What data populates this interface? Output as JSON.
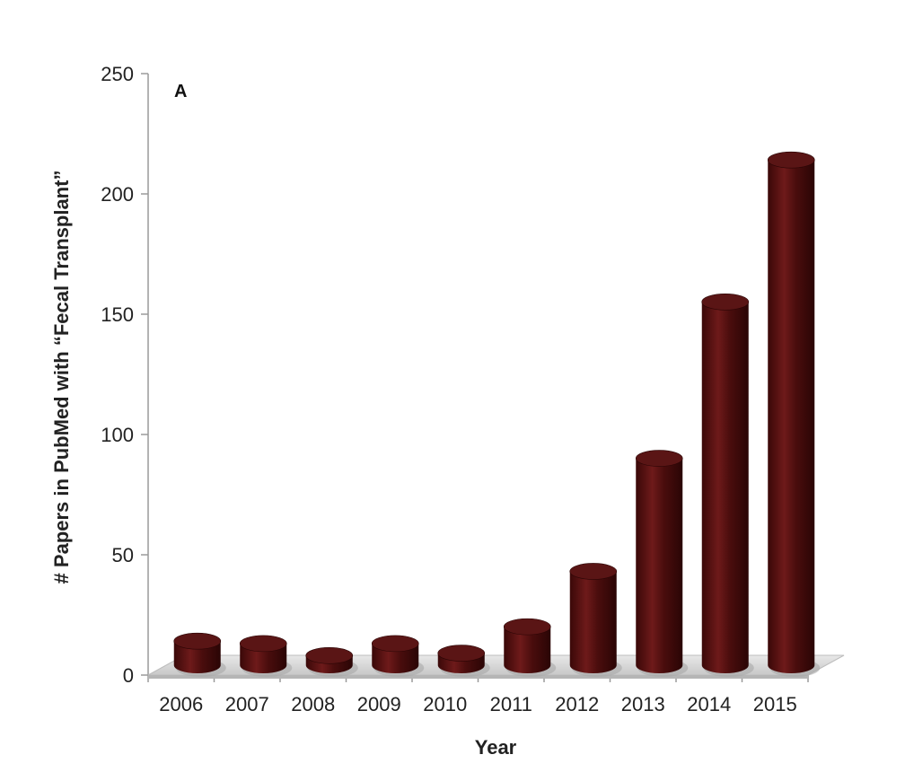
{
  "chart_data": {
    "type": "bar",
    "style": "3d-cylinder",
    "panel_label": "A",
    "title": "",
    "xlabel": "Year",
    "ylabel": "# Papers in PubMed with “Fecal Transplant”",
    "categories": [
      "2006",
      "2007",
      "2008",
      "2009",
      "2010",
      "2011",
      "2012",
      "2013",
      "2014",
      "2015"
    ],
    "values": [
      10,
      9,
      4,
      9,
      5,
      16,
      39,
      86,
      151,
      210
    ],
    "ylim": [
      0,
      250
    ],
    "yticks": [
      0,
      50,
      100,
      150,
      200,
      250
    ],
    "grid": false,
    "colors": {
      "bar": "#4a0d0d",
      "bar_highlight": "#7a2222",
      "bar_top": "#5a1515",
      "floor": "#d9d9d9",
      "axis": "#9a9a9a"
    }
  }
}
